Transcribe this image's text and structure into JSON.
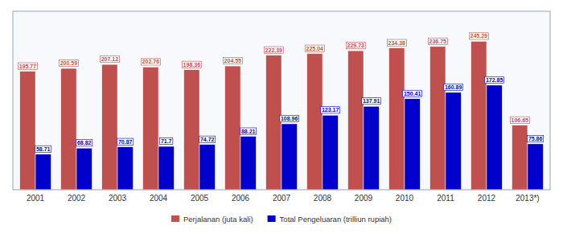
{
  "chart_data": {
    "type": "bar",
    "categories": [
      "2001",
      "2002",
      "2003",
      "2004",
      "2005",
      "2006",
      "2007",
      "2008",
      "2009",
      "2010",
      "2011",
      "2012",
      "2013*)"
    ],
    "series": [
      {
        "name": "Perjalanan (juta kali)",
        "color": "#C0504D",
        "values": [
          195.77,
          200.59,
          207.12,
          202.76,
          198.36,
          204.55,
          222.39,
          225.04,
          229.73,
          234.38,
          236.75,
          245.29,
          106.65
        ]
      },
      {
        "name": "Total Pengeluaran (trilliun rupiah)",
        "color": "#0000CD",
        "values": [
          58.71,
          68.82,
          70.87,
          71.7,
          74.72,
          88.21,
          108.96,
          123.17,
          137.91,
          150.41,
          160.89,
          172.85,
          75.86
        ]
      }
    ],
    "ylim": [
      0,
      295
    ],
    "grid": false,
    "legend": "bottom",
    "data_labels": true,
    "tick_labels": "x"
  }
}
